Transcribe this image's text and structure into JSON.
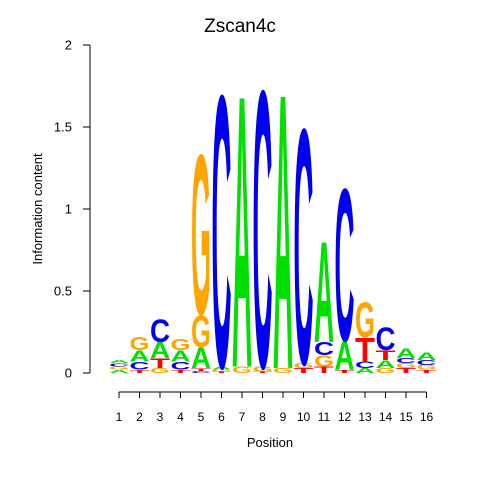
{
  "chart_data": {
    "type": "sequence-logo",
    "title": "Zscan4c",
    "xlabel": "Position",
    "ylabel": "Information content",
    "ylim": [
      0,
      2
    ],
    "yticks": [
      "0",
      "0.5",
      "1",
      "1.5",
      "2"
    ],
    "positions": [
      "1",
      "2",
      "3",
      "4",
      "5",
      "6",
      "7",
      "8",
      "9",
      "10",
      "11",
      "12",
      "13",
      "14",
      "15",
      "16"
    ],
    "colors": {
      "A": "#00e000",
      "C": "#0000ee",
      "G": "#ffa500",
      "T": "#ff0000"
    },
    "columns": [
      [
        {
          "l": "A",
          "h": 0.02
        },
        {
          "l": "G",
          "h": 0.02
        },
        {
          "l": "C",
          "h": 0.02
        },
        {
          "l": "A",
          "h": 0.02
        }
      ],
      [
        {
          "l": "T",
          "h": 0.02
        },
        {
          "l": "C",
          "h": 0.05
        },
        {
          "l": "A",
          "h": 0.07
        },
        {
          "l": "G",
          "h": 0.08
        }
      ],
      [
        {
          "l": "G",
          "h": 0.03
        },
        {
          "l": "T",
          "h": 0.06
        },
        {
          "l": "A",
          "h": 0.1
        },
        {
          "l": "C",
          "h": 0.14
        }
      ],
      [
        {
          "l": "T",
          "h": 0.02
        },
        {
          "l": "C",
          "h": 0.05
        },
        {
          "l": "A",
          "h": 0.07
        },
        {
          "l": "G",
          "h": 0.07
        }
      ],
      [
        {
          "l": "C",
          "h": 0.01
        },
        {
          "l": "T",
          "h": 0.02
        },
        {
          "l": "A",
          "h": 0.13
        },
        {
          "l": "G",
          "h": 0.2
        },
        {
          "l": "G",
          "h": 1.0
        }
      ],
      [
        {
          "l": "T",
          "h": 0.01
        },
        {
          "l": "G",
          "h": 0.01
        },
        {
          "l": "A",
          "h": 0.02
        },
        {
          "l": "C",
          "h": 1.7
        }
      ],
      [
        {
          "l": "G",
          "h": 0.04
        },
        {
          "l": "A",
          "h": 1.7
        }
      ],
      [
        {
          "l": "T",
          "h": 0.01
        },
        {
          "l": "G",
          "h": 0.03
        },
        {
          "l": "C",
          "h": 1.73
        }
      ],
      [
        {
          "l": "G",
          "h": 0.03
        },
        {
          "l": "A",
          "h": 1.72
        }
      ],
      [
        {
          "l": "T",
          "h": 0.03
        },
        {
          "l": "G",
          "h": 0.03
        },
        {
          "l": "C",
          "h": 1.47
        }
      ],
      [
        {
          "l": "T",
          "h": 0.04
        },
        {
          "l": "G",
          "h": 0.07
        },
        {
          "l": "C",
          "h": 0.08
        },
        {
          "l": "A",
          "h": 0.63
        }
      ],
      [
        {
          "l": "T",
          "h": 0.02
        },
        {
          "l": "A",
          "h": 0.18
        },
        {
          "l": "C",
          "h": 0.95
        }
      ],
      [
        {
          "l": "A",
          "h": 0.03
        },
        {
          "l": "C",
          "h": 0.04
        },
        {
          "l": "T",
          "h": 0.15
        },
        {
          "l": "G",
          "h": 0.22
        }
      ],
      [
        {
          "l": "G",
          "h": 0.03
        },
        {
          "l": "A",
          "h": 0.05
        },
        {
          "l": "T",
          "h": 0.06
        },
        {
          "l": "C",
          "h": 0.14
        }
      ],
      [
        {
          "l": "T",
          "h": 0.03
        },
        {
          "l": "G",
          "h": 0.03
        },
        {
          "l": "C",
          "h": 0.03
        },
        {
          "l": "A",
          "h": 0.06
        }
      ],
      [
        {
          "l": "T",
          "h": 0.02
        },
        {
          "l": "G",
          "h": 0.03
        },
        {
          "l": "C",
          "h": 0.03
        },
        {
          "l": "A",
          "h": 0.05
        }
      ]
    ]
  }
}
